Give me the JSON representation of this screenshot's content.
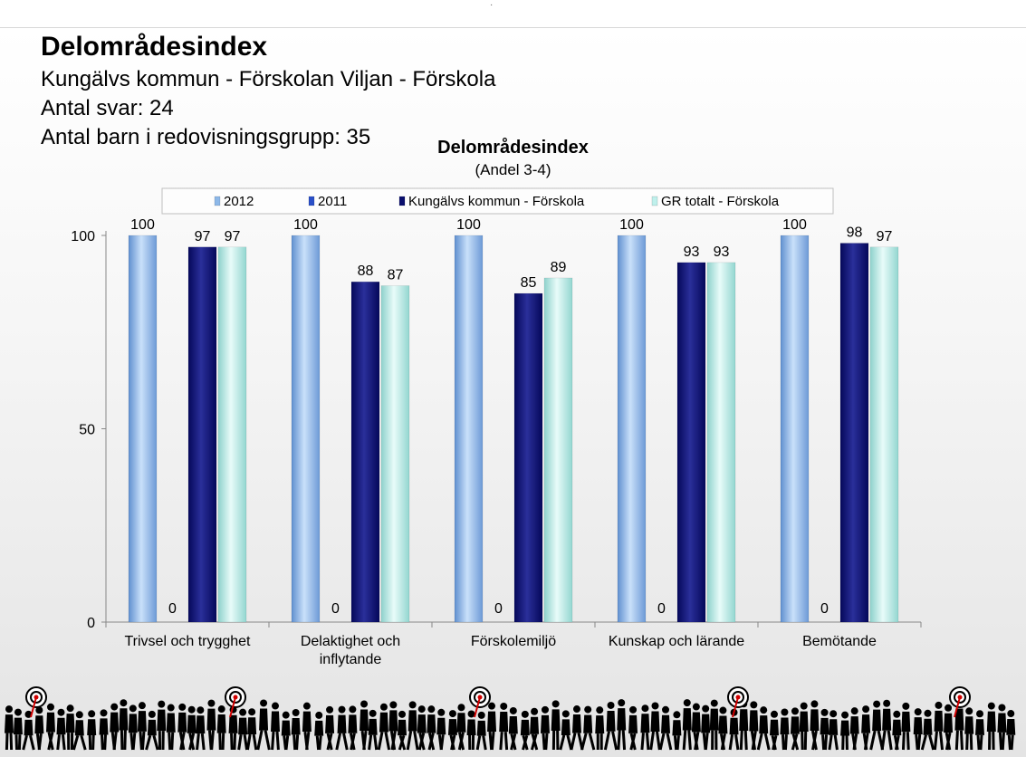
{
  "header": {
    "title": "Delområdesindex",
    "subtitle": "Kungälvs kommun - Förskolan Viljan - Förskola",
    "antal_svar": "Antal svar: 24",
    "antal_barn": "Antal barn i redovisningsgrupp: 35"
  },
  "colors": {
    "2012": "#8db8e8",
    "2011": "#2a4fc8",
    "kommun": "#0a0f6e",
    "gr": "#bff0ec"
  },
  "chart_data": {
    "type": "bar",
    "title": "Delområdesindex",
    "subtitle": "(Andel 3-4)",
    "categories": [
      "Trivsel och trygghet",
      "Delaktighet och inflytande",
      "Förskolemiljö",
      "Kunskap och lärande",
      "Bemötande"
    ],
    "series": [
      {
        "name": "2012",
        "values": [
          100,
          100,
          100,
          100,
          100
        ]
      },
      {
        "name": "2011",
        "values": [
          0,
          0,
          0,
          0,
          0
        ]
      },
      {
        "name": "Kungälvs kommun - Förskola",
        "values": [
          97,
          88,
          85,
          93,
          98
        ]
      },
      {
        "name": "GR totalt - Förskola",
        "values": [
          97,
          87,
          89,
          93,
          97
        ]
      }
    ],
    "ylim": [
      0,
      100
    ],
    "yticks": [
      0,
      50,
      100
    ],
    "grid": false,
    "legend": "top"
  }
}
